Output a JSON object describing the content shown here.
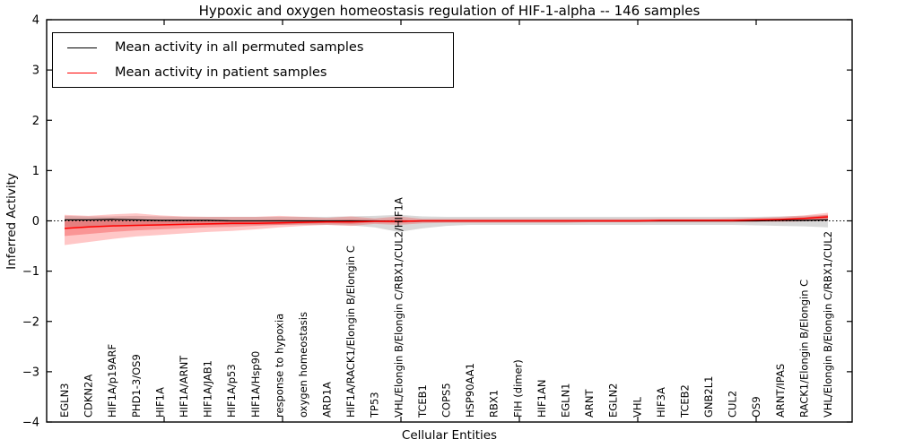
{
  "figure": {
    "title": "Hypoxic and oxygen homeostasis regulation of HIF-1-alpha -- 146 samples",
    "xlabel": "Cellular Entities",
    "ylabel": "Inferred Activity"
  },
  "legend": {
    "entries": [
      {
        "label": "Mean activity in all permuted samples",
        "color": "#000000"
      },
      {
        "label": "Mean activity in patient samples",
        "color": "#ff0000"
      }
    ]
  },
  "chart_data": {
    "type": "line",
    "title": "Hypoxic and oxygen homeostasis regulation of HIF-1-alpha -- 146 samples",
    "xlabel": "Cellular Entities",
    "ylabel": "Inferred Activity",
    "ylim": [
      -4,
      4
    ],
    "yticks": [
      4,
      3,
      2,
      1,
      0,
      -1,
      -2,
      -3,
      -4
    ],
    "ytick_labels": [
      "4",
      "3",
      "2",
      "1",
      "0",
      "−1",
      "−2",
      "−3",
      "−4"
    ],
    "grid": false,
    "legend_position": "upper left",
    "zero_line": "dotted",
    "x_tick_labels_rotation": 90,
    "categories": [
      "EGLN3",
      "CDKN2A",
      "HIF1A/p19ARF",
      "PHD1-3/OS9",
      "HIF1A",
      "HIF1A/ARNT",
      "HIF1A/JAB1",
      "HIF1A/p53",
      "HIF1A/Hsp90",
      "response to hypoxia",
      "oxygen homeostasis",
      "ARD1A",
      "HIF1A/RACK1/Elongin B/Elongin C",
      "TP53",
      "VHL/Elongin B/Elongin C/RBX1/CUL2/HIF1A",
      "TCEB1",
      "COPS5",
      "HSP90AA1",
      "RBX1",
      "FIH (dimer)",
      "HIF1AN",
      "EGLN1",
      "ARNT",
      "EGLN2",
      "VHL",
      "HIF3A",
      "TCEB2",
      "GNB2L1",
      "CUL2",
      "OS9",
      "ARNT/IPAS",
      "RACK1/Elongin B/Elongin C",
      "VHL/Elongin B/Elongin C/RBX1/CUL2"
    ],
    "series": [
      {
        "name": "Mean activity in all permuted samples",
        "color": "#000000",
        "values": [
          0.02,
          0.02,
          0.03,
          0.02,
          0.01,
          0.01,
          0.01,
          0.0,
          0.0,
          0.0,
          0.0,
          0.0,
          0.0,
          0.0,
          -0.01,
          0.0,
          0.0,
          0.0,
          0.0,
          0.0,
          0.0,
          0.0,
          0.0,
          0.0,
          0.0,
          0.0,
          0.0,
          0.0,
          0.0,
          0.0,
          0.01,
          0.01,
          0.02
        ]
      },
      {
        "name": "Mean activity in patient samples",
        "color": "#ff0000",
        "values": [
          -0.15,
          -0.12,
          -0.1,
          -0.09,
          -0.08,
          -0.07,
          -0.06,
          -0.05,
          -0.05,
          -0.04,
          -0.03,
          -0.02,
          -0.02,
          -0.01,
          -0.01,
          0.0,
          0.0,
          0.0,
          0.0,
          0.0,
          0.0,
          0.0,
          0.0,
          0.0,
          0.0,
          0.01,
          0.01,
          0.01,
          0.01,
          0.02,
          0.03,
          0.05,
          0.08
        ]
      }
    ],
    "bands": [
      {
        "name": "permuted-range",
        "color": "#888888",
        "opacity": 0.32,
        "low": [
          -0.12,
          -0.11,
          -0.1,
          -0.09,
          -0.09,
          -0.08,
          -0.08,
          -0.08,
          -0.08,
          -0.08,
          -0.08,
          -0.08,
          -0.09,
          -0.13,
          -0.22,
          -0.15,
          -0.1,
          -0.08,
          -0.08,
          -0.08,
          -0.08,
          -0.08,
          -0.08,
          -0.08,
          -0.08,
          -0.08,
          -0.08,
          -0.08,
          -0.08,
          -0.09,
          -0.1,
          -0.11,
          -0.13
        ],
        "high": [
          0.1,
          0.09,
          0.09,
          0.1,
          0.09,
          0.08,
          0.08,
          0.08,
          0.08,
          0.08,
          0.08,
          0.08,
          0.09,
          0.1,
          0.12,
          0.09,
          0.08,
          0.08,
          0.08,
          0.08,
          0.08,
          0.08,
          0.08,
          0.08,
          0.08,
          0.08,
          0.08,
          0.08,
          0.08,
          0.08,
          0.09,
          0.1,
          0.12
        ]
      },
      {
        "name": "patient-range-outer",
        "color": "#ff0000",
        "opacity": 0.22,
        "low": [
          -0.48,
          -0.42,
          -0.36,
          -0.31,
          -0.28,
          -0.25,
          -0.22,
          -0.2,
          -0.17,
          -0.13,
          -0.1,
          -0.08,
          -0.1,
          -0.06,
          -0.08,
          -0.05,
          -0.04,
          -0.04,
          -0.04,
          -0.04,
          -0.04,
          -0.04,
          -0.03,
          -0.03,
          -0.03,
          -0.03,
          -0.03,
          -0.03,
          -0.03,
          -0.02,
          -0.02,
          -0.01,
          0.0
        ],
        "high": [
          0.12,
          0.1,
          0.13,
          0.15,
          0.11,
          0.09,
          0.08,
          0.08,
          0.08,
          0.1,
          0.08,
          0.06,
          0.09,
          0.05,
          0.09,
          0.04,
          0.04,
          0.04,
          0.04,
          0.04,
          0.04,
          0.04,
          0.04,
          0.04,
          0.04,
          0.04,
          0.04,
          0.04,
          0.05,
          0.06,
          0.08,
          0.11,
          0.16
        ]
      },
      {
        "name": "patient-range-inner",
        "color": "#ee2222",
        "opacity": 0.3,
        "low": [
          -0.3,
          -0.26,
          -0.22,
          -0.19,
          -0.17,
          -0.15,
          -0.13,
          -0.12,
          -0.1,
          -0.08,
          -0.06,
          -0.05,
          -0.06,
          -0.03,
          -0.04,
          -0.02,
          -0.02,
          -0.02,
          -0.02,
          -0.02,
          -0.02,
          -0.02,
          -0.02,
          -0.02,
          -0.02,
          -0.01,
          -0.01,
          -0.01,
          -0.01,
          0.0,
          0.0,
          0.02,
          0.04
        ],
        "high": [
          0.0,
          0.01,
          0.02,
          0.03,
          0.02,
          0.01,
          0.01,
          0.01,
          0.01,
          0.02,
          0.01,
          0.01,
          0.02,
          0.01,
          0.02,
          0.01,
          0.01,
          0.01,
          0.01,
          0.01,
          0.01,
          0.01,
          0.01,
          0.01,
          0.01,
          0.02,
          0.02,
          0.02,
          0.02,
          0.03,
          0.04,
          0.07,
          0.12
        ]
      }
    ]
  }
}
